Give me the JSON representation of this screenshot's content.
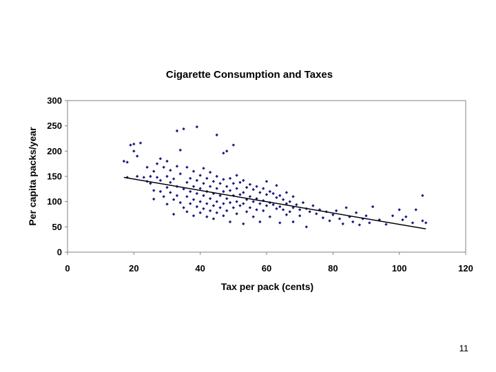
{
  "slide": {
    "page_number": "11"
  },
  "chart_data": {
    "type": "scatter",
    "title": "Cigarette Consumption and Taxes",
    "xlabel": "Tax per pack (cents)",
    "ylabel": "Per capita packs/year",
    "xlim": [
      0,
      120
    ],
    "ylim": [
      0,
      300
    ],
    "xticks": [
      0,
      20,
      40,
      60,
      80,
      100,
      120
    ],
    "yticks": [
      0,
      50,
      100,
      150,
      200,
      250,
      300
    ],
    "grid": false,
    "legend": "none",
    "point_color": "#1a1a80",
    "trendline": {
      "x": [
        17,
        108
      ],
      "y": [
        148,
        46
      ],
      "color": "#000000"
    },
    "series": [
      {
        "points": [
          [
            17,
            180
          ],
          [
            18,
            178
          ],
          [
            18,
            148
          ],
          [
            19,
            212
          ],
          [
            20,
            214
          ],
          [
            20,
            200
          ],
          [
            21,
            190
          ],
          [
            22,
            216
          ],
          [
            21,
            150
          ],
          [
            23,
            148
          ],
          [
            24,
            140
          ],
          [
            24,
            168
          ],
          [
            25,
            150
          ],
          [
            25,
            136
          ],
          [
            26,
            160
          ],
          [
            26,
            122
          ],
          [
            26,
            105
          ],
          [
            27,
            175
          ],
          [
            27,
            148
          ],
          [
            28,
            185
          ],
          [
            28,
            142
          ],
          [
            28,
            120
          ],
          [
            29,
            168
          ],
          [
            29,
            110
          ],
          [
            30,
            180
          ],
          [
            30,
            150
          ],
          [
            30,
            128
          ],
          [
            30,
            95
          ],
          [
            31,
            162
          ],
          [
            31,
            138
          ],
          [
            31,
            118
          ],
          [
            32,
            145
          ],
          [
            32,
            104
          ],
          [
            32,
            75
          ],
          [
            33,
            170
          ],
          [
            33,
            130
          ],
          [
            33,
            112
          ],
          [
            34,
            155
          ],
          [
            34,
            98
          ],
          [
            34,
            202
          ],
          [
            33,
            240
          ],
          [
            35,
            244
          ],
          [
            35,
            125
          ],
          [
            35,
            88
          ],
          [
            36,
            168
          ],
          [
            36,
            138
          ],
          [
            36,
            110
          ],
          [
            36,
            80
          ],
          [
            37,
            146
          ],
          [
            37,
            120
          ],
          [
            37,
            96
          ],
          [
            38,
            160
          ],
          [
            38,
            130
          ],
          [
            38,
            104
          ],
          [
            38,
            72
          ],
          [
            39,
            248
          ],
          [
            39,
            142
          ],
          [
            39,
            116
          ],
          [
            39,
            90
          ],
          [
            40,
            152
          ],
          [
            40,
            126
          ],
          [
            40,
            100
          ],
          [
            40,
            78
          ],
          [
            41,
            166
          ],
          [
            41,
            136
          ],
          [
            41,
            112
          ],
          [
            41,
            86
          ],
          [
            42,
            146
          ],
          [
            42,
            120
          ],
          [
            42,
            96
          ],
          [
            42,
            70
          ],
          [
            43,
            158
          ],
          [
            43,
            130
          ],
          [
            43,
            106
          ],
          [
            43,
            82
          ],
          [
            44,
            140
          ],
          [
            44,
            116
          ],
          [
            44,
            92
          ],
          [
            44,
            66
          ],
          [
            45,
            232
          ],
          [
            45,
            150
          ],
          [
            45,
            126
          ],
          [
            45,
            100
          ],
          [
            45,
            78
          ],
          [
            46,
            136
          ],
          [
            46,
            112
          ],
          [
            46,
            88
          ],
          [
            47,
            196
          ],
          [
            47,
            144
          ],
          [
            47,
            120
          ],
          [
            47,
            96
          ],
          [
            47,
            72
          ],
          [
            48,
            200
          ],
          [
            48,
            130
          ],
          [
            48,
            106
          ],
          [
            48,
            82
          ],
          [
            49,
            146
          ],
          [
            49,
            122
          ],
          [
            49,
            98
          ],
          [
            49,
            60
          ],
          [
            50,
            212
          ],
          [
            50,
            136
          ],
          [
            50,
            112
          ],
          [
            50,
            88
          ],
          [
            51,
            152
          ],
          [
            51,
            126
          ],
          [
            51,
            100
          ],
          [
            51,
            76
          ],
          [
            52,
            138
          ],
          [
            52,
            114
          ],
          [
            52,
            92
          ],
          [
            53,
            142
          ],
          [
            53,
            118
          ],
          [
            53,
            96
          ],
          [
            53,
            56
          ],
          [
            54,
            128
          ],
          [
            54,
            104
          ],
          [
            54,
            80
          ],
          [
            55,
            134
          ],
          [
            55,
            110
          ],
          [
            55,
            88
          ],
          [
            56,
            124
          ],
          [
            56,
            100
          ],
          [
            56,
            70
          ],
          [
            57,
            130
          ],
          [
            57,
            106
          ],
          [
            57,
            84
          ],
          [
            58,
            118
          ],
          [
            58,
            96
          ],
          [
            58,
            60
          ],
          [
            59,
            126
          ],
          [
            59,
            102
          ],
          [
            59,
            82
          ],
          [
            60,
            140
          ],
          [
            60,
            114
          ],
          [
            60,
            92
          ],
          [
            61,
            120
          ],
          [
            61,
            98
          ],
          [
            61,
            70
          ],
          [
            62,
            116
          ],
          [
            62,
            94
          ],
          [
            63,
            132
          ],
          [
            63,
            108
          ],
          [
            63,
            86
          ],
          [
            64,
            112
          ],
          [
            64,
            90
          ],
          [
            64,
            58
          ],
          [
            65,
            104
          ],
          [
            65,
            84
          ],
          [
            66,
            118
          ],
          [
            66,
            96
          ],
          [
            66,
            74
          ],
          [
            67,
            100
          ],
          [
            67,
            80
          ],
          [
            68,
            110
          ],
          [
            68,
            88
          ],
          [
            68,
            60
          ],
          [
            69,
            94
          ],
          [
            70,
            84
          ],
          [
            70,
            72
          ],
          [
            71,
            98
          ],
          [
            72,
            86
          ],
          [
            72,
            50
          ],
          [
            73,
            80
          ],
          [
            74,
            92
          ],
          [
            75,
            76
          ],
          [
            76,
            84
          ],
          [
            77,
            68
          ],
          [
            78,
            80
          ],
          [
            79,
            62
          ],
          [
            80,
            74
          ],
          [
            81,
            82
          ],
          [
            82,
            66
          ],
          [
            83,
            56
          ],
          [
            84,
            88
          ],
          [
            85,
            70
          ],
          [
            86,
            60
          ],
          [
            87,
            78
          ],
          [
            88,
            54
          ],
          [
            89,
            66
          ],
          [
            90,
            72
          ],
          [
            91,
            58
          ],
          [
            92,
            90
          ],
          [
            94,
            64
          ],
          [
            96,
            55
          ],
          [
            98,
            72
          ],
          [
            100,
            84
          ],
          [
            101,
            64
          ],
          [
            102,
            70
          ],
          [
            104,
            58
          ],
          [
            105,
            84
          ],
          [
            107,
            112
          ],
          [
            107,
            62
          ],
          [
            108,
            58
          ]
        ]
      }
    ]
  }
}
